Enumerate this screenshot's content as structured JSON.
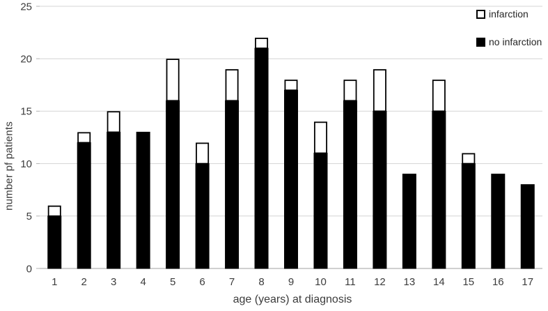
{
  "chart_data": {
    "type": "bar",
    "stacked": true,
    "title": "",
    "xlabel": "age (years) at diagnosis",
    "ylabel": "number pf patients",
    "categories": [
      "1",
      "2",
      "3",
      "4",
      "5",
      "6",
      "7",
      "8",
      "9",
      "10",
      "11",
      "12",
      "13",
      "14",
      "15",
      "16",
      "17"
    ],
    "series": [
      {
        "name": "no infarction",
        "fill": "#000000",
        "values": [
          5,
          12,
          13,
          13,
          16,
          10,
          16,
          21,
          17,
          11,
          16,
          15,
          9,
          15,
          10,
          9,
          8
        ]
      },
      {
        "name": "infarction",
        "fill": "#ffffff",
        "values": [
          1,
          1,
          2,
          0,
          4,
          2,
          3,
          1,
          1,
          3,
          2,
          4,
          0,
          3,
          1,
          0,
          0
        ]
      }
    ],
    "totals": [
      6,
      13,
      15,
      13,
      20,
      12,
      19,
      22,
      18,
      14,
      18,
      19,
      9,
      18,
      11,
      9,
      8
    ],
    "y_ticks": [
      0,
      5,
      10,
      15,
      20,
      25
    ],
    "ylim": [
      0,
      25
    ],
    "grid": "horizontal",
    "legend": {
      "position": "top-right",
      "entries": [
        {
          "label": "infarction",
          "fill": "#ffffff"
        },
        {
          "label": "no infarction",
          "fill": "#000000"
        }
      ]
    },
    "colors": {
      "bar_fill": "#000000",
      "bar_cap_fill": "#ffffff",
      "bar_outline": "#000000",
      "gridline": "#d4d4d4",
      "axis_line": "#b3b3b3",
      "tick_text": "#3b3b3b"
    }
  }
}
